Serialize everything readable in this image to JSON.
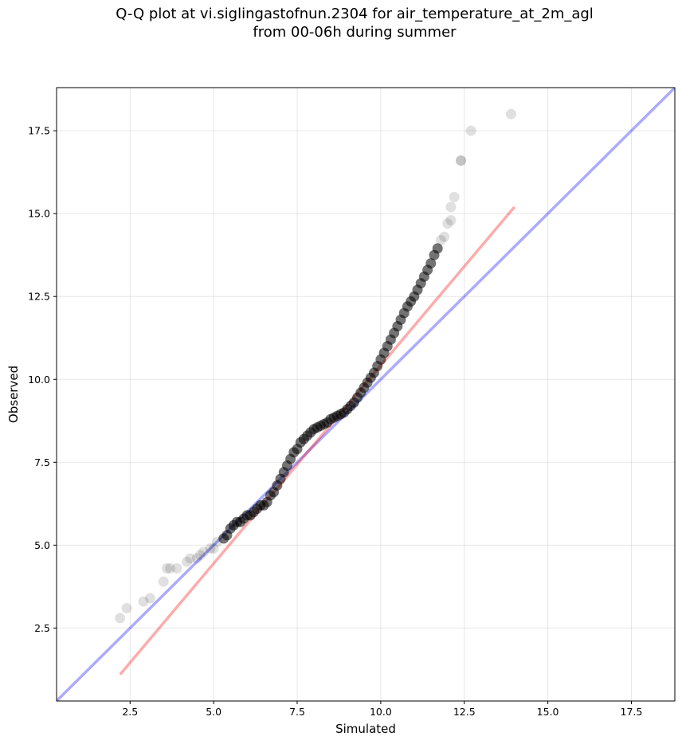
{
  "chart_data": {
    "type": "scatter",
    "title_lines": [
      "Q-Q plot at vi.siglingastofnun.2304 for air_temperature_at_2m_agl",
      "from 00-06h during summer"
    ],
    "xlabel": "Simulated",
    "ylabel": "Observed",
    "xlim": [
      0.3,
      18.8
    ],
    "ylim": [
      0.3,
      18.8
    ],
    "x_ticks": [
      2.5,
      5.0,
      7.5,
      10.0,
      12.5,
      15.0,
      17.5
    ],
    "y_ticks": [
      2.5,
      5.0,
      7.5,
      10.0,
      12.5,
      15.0,
      17.5
    ],
    "tick_labels": [
      "2.5",
      "5.0",
      "7.5",
      "10.0",
      "12.5",
      "15.0",
      "17.5"
    ],
    "grid": true,
    "lines": [
      {
        "role": "reference_1to1",
        "color": "#0000ff",
        "x": [
          0.3,
          18.8
        ],
        "y": [
          0.3,
          18.8
        ]
      },
      {
        "role": "fit",
        "color": "#ff0000",
        "x": [
          2.2,
          14.0
        ],
        "y": [
          1.1,
          15.2
        ]
      }
    ],
    "series": [
      {
        "color": "#000000",
        "x": [
          2.2,
          2.4,
          2.9,
          3.1,
          3.5,
          3.6,
          3.7,
          3.9,
          4.2,
          4.3,
          4.5,
          4.6,
          4.7,
          4.9,
          5.0,
          5.1,
          5.3,
          5.4,
          5.5,
          5.6,
          5.7,
          5.8,
          5.9,
          6.0,
          6.1,
          6.2,
          6.3,
          6.4,
          6.5,
          6.6,
          6.7,
          6.8,
          6.9,
          7.0,
          7.1,
          7.2,
          7.3,
          7.4,
          7.5,
          7.6,
          7.7,
          7.8,
          7.9,
          8.0,
          8.1,
          8.2,
          8.3,
          8.4,
          8.5,
          8.6,
          8.7,
          8.8,
          8.9,
          9.0,
          9.1,
          9.2,
          9.3,
          9.4,
          9.5,
          9.6,
          9.7,
          9.8,
          9.9,
          10.0,
          10.1,
          10.2,
          10.3,
          10.4,
          10.5,
          10.6,
          10.7,
          10.8,
          10.9,
          11.0,
          11.1,
          11.2,
          11.3,
          11.4,
          11.5,
          11.6,
          11.7,
          11.8,
          11.9,
          12.0,
          12.1,
          12.1,
          12.2,
          12.4,
          12.4,
          12.7,
          13.9
        ],
        "y": [
          2.8,
          3.1,
          3.3,
          3.4,
          3.9,
          4.3,
          4.3,
          4.3,
          4.5,
          4.6,
          4.6,
          4.7,
          4.8,
          4.9,
          4.9,
          5.1,
          5.2,
          5.3,
          5.5,
          5.6,
          5.7,
          5.7,
          5.8,
          5.9,
          5.9,
          6.0,
          6.1,
          6.2,
          6.2,
          6.3,
          6.5,
          6.6,
          6.8,
          7.0,
          7.2,
          7.4,
          7.6,
          7.8,
          7.9,
          8.1,
          8.2,
          8.3,
          8.4,
          8.5,
          8.55,
          8.6,
          8.65,
          8.7,
          8.8,
          8.85,
          8.9,
          8.95,
          9.0,
          9.1,
          9.2,
          9.3,
          9.45,
          9.6,
          9.75,
          9.9,
          10.05,
          10.2,
          10.4,
          10.6,
          10.8,
          11.0,
          11.2,
          11.4,
          11.6,
          11.8,
          12.0,
          12.2,
          12.35,
          12.5,
          12.7,
          12.9,
          13.1,
          13.3,
          13.5,
          13.75,
          13.95,
          14.2,
          14.3,
          14.7,
          14.8,
          15.2,
          15.5,
          16.6,
          16.6,
          17.5,
          18.0
        ]
      }
    ]
  }
}
